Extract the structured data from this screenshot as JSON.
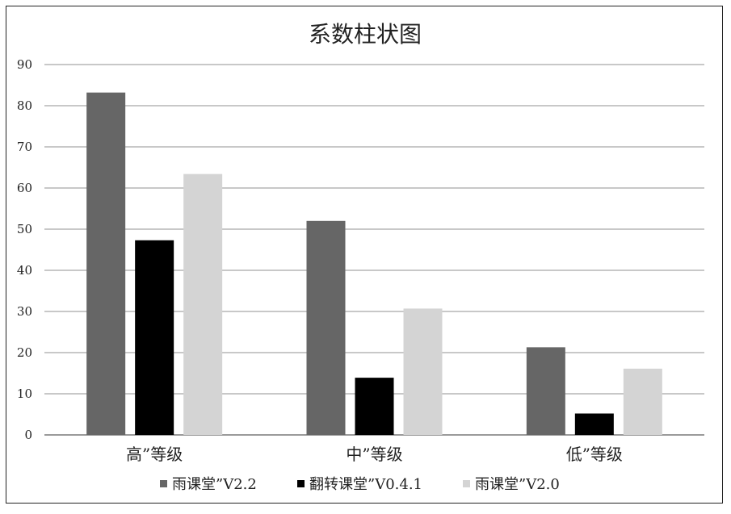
{
  "chart_data": {
    "type": "bar",
    "title": "系数柱状图",
    "xlabel": "",
    "ylabel": "",
    "categories": [
      "高”等级",
      "中”等级",
      "低”等级"
    ],
    "series": [
      {
        "name": "雨课堂”V2.2",
        "values": [
          83.2,
          52,
          21.3
        ],
        "color": "#666666"
      },
      {
        "name": "翻转课堂”V0.4.1",
        "values": [
          47.3,
          13.9,
          5.2
        ],
        "color": "#000000"
      },
      {
        "name": "雨课堂”V2.0",
        "values": [
          63.4,
          30.7,
          16.1
        ],
        "color": "#d4d4d4"
      }
    ],
    "ylim": [
      0,
      90
    ],
    "yticks": [
      0,
      10,
      20,
      30,
      40,
      50,
      60,
      70,
      80,
      90
    ],
    "grid": true,
    "grid_color": "#c8c8c8",
    "legend": "bottom"
  }
}
